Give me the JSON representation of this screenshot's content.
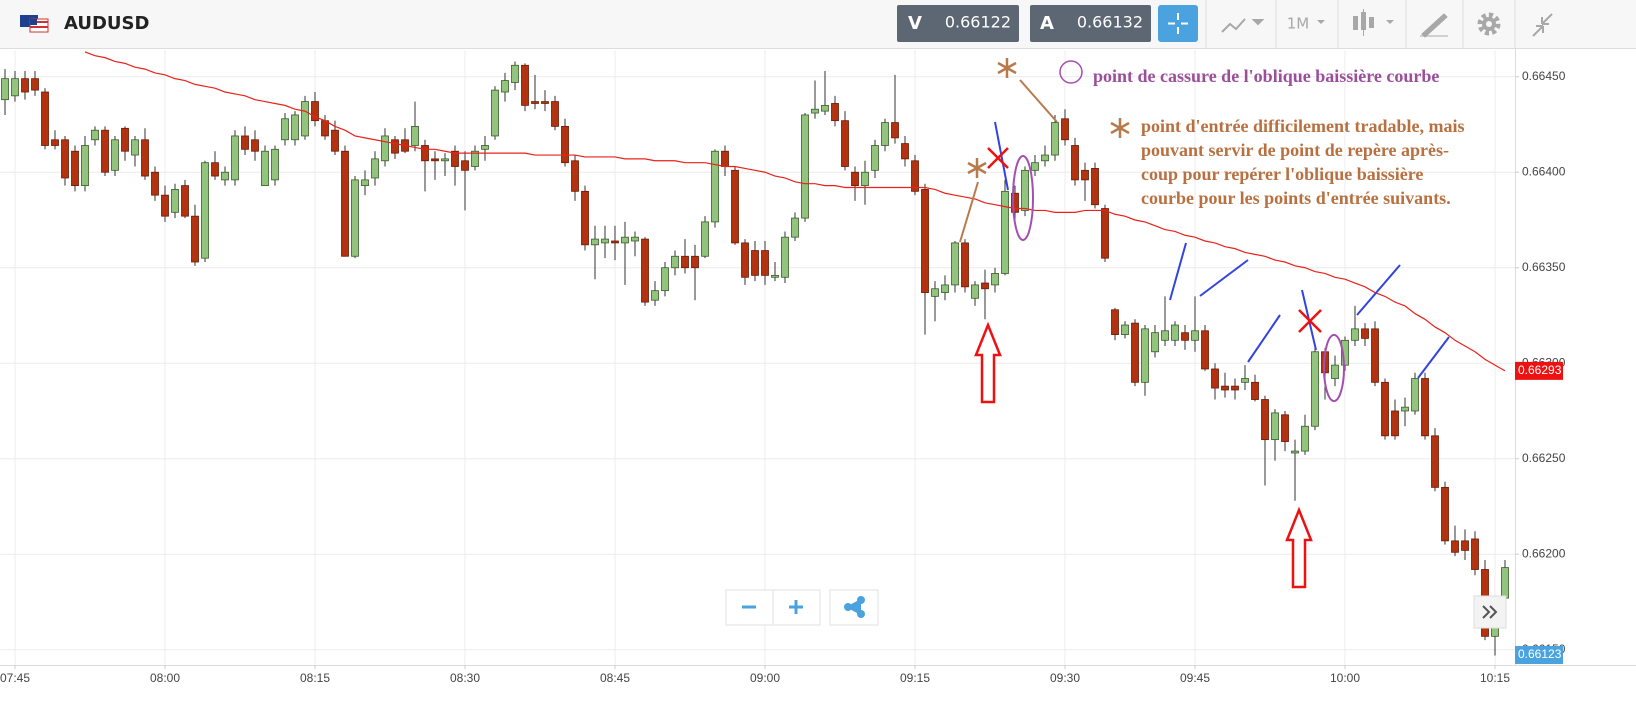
{
  "header": {
    "symbol": "AUDUSD",
    "sell_label": "V",
    "sell_price": "0.66122",
    "buy_label": "A",
    "buy_price": "0.66132",
    "timeframe": "1M"
  },
  "chart_data": {
    "type": "candlestick",
    "categories": [
      null,
      "07:45",
      null,
      null,
      null,
      null,
      null,
      null,
      null,
      null,
      null,
      null,
      null,
      null,
      null,
      null,
      "08:00",
      null,
      null,
      null,
      null,
      null,
      null,
      null,
      null,
      null,
      null,
      null,
      null,
      null,
      null,
      "08:15",
      null,
      null,
      null,
      null,
      null,
      null,
      null,
      null,
      null,
      null,
      null,
      null,
      null,
      null,
      "08:30",
      null,
      null,
      null,
      null,
      null,
      null,
      null,
      null,
      null,
      null,
      null,
      null,
      null,
      null,
      "08:45",
      null,
      null,
      null,
      null,
      null,
      null,
      null,
      null,
      null,
      null,
      null,
      null,
      null,
      null,
      "09:00",
      null,
      null,
      null,
      null,
      null,
      null,
      null,
      null,
      null,
      null,
      null,
      null,
      null,
      null,
      "09:15",
      null,
      null,
      null,
      null,
      null,
      null,
      null,
      null,
      null,
      null,
      null,
      null,
      null,
      null,
      "09:30",
      null,
      null,
      null,
      null,
      null,
      null,
      null,
      null,
      null,
      null,
      null,
      null,
      "09:45",
      null,
      null,
      null,
      null,
      null,
      null,
      null,
      null,
      null,
      null,
      null,
      null,
      null,
      null,
      "10:00",
      null,
      null,
      null,
      null,
      null,
      null,
      null,
      null,
      null,
      null,
      null,
      null,
      null,
      null,
      "10:15",
      null
    ],
    "values": [
      [
        0.66438,
        0.66454,
        0.6643,
        0.66449
      ],
      [
        0.6644,
        0.66453,
        0.66437,
        0.66449
      ],
      [
        0.66449,
        0.66453,
        0.66438,
        0.66442
      ],
      [
        0.66449,
        0.66453,
        0.6644,
        0.66443
      ],
      [
        0.66442,
        0.66444,
        0.66412,
        0.66414
      ],
      [
        0.66417,
        0.66422,
        0.66412,
        0.66414
      ],
      [
        0.66417,
        0.66419,
        0.66393,
        0.66397
      ],
      [
        0.66411,
        0.66414,
        0.6639,
        0.66393
      ],
      [
        0.66393,
        0.66419,
        0.6639,
        0.66414
      ],
      [
        0.66417,
        0.66424,
        0.66414,
        0.66422
      ],
      [
        0.66422,
        0.66424,
        0.66398,
        0.664
      ],
      [
        0.66401,
        0.66419,
        0.66398,
        0.66417
      ],
      [
        0.66423,
        0.66424,
        0.66406,
        0.66411
      ],
      [
        0.66409,
        0.66419,
        0.66403,
        0.66417
      ],
      [
        0.66417,
        0.66423,
        0.66396,
        0.66398
      ],
      [
        0.664,
        0.66403,
        0.66385,
        0.66388
      ],
      [
        0.66388,
        0.66393,
        0.66374,
        0.66377
      ],
      [
        0.66379,
        0.66394,
        0.66376,
        0.66391
      ],
      [
        0.66393,
        0.66396,
        0.66376,
        0.66377
      ],
      [
        0.66377,
        0.66383,
        0.66351,
        0.66353
      ],
      [
        0.66355,
        0.66406,
        0.66353,
        0.66405
      ],
      [
        0.66405,
        0.66411,
        0.66396,
        0.66398
      ],
      [
        0.66396,
        0.66403,
        0.66393,
        0.664
      ],
      [
        0.66396,
        0.66422,
        0.66393,
        0.66419
      ],
      [
        0.66419,
        0.66424,
        0.66409,
        0.66412
      ],
      [
        0.66417,
        0.66422,
        0.66406,
        0.66411
      ],
      [
        0.66393,
        0.66414,
        0.66393,
        0.66411
      ],
      [
        0.66396,
        0.66414,
        0.66393,
        0.66412
      ],
      [
        0.66417,
        0.66431,
        0.66414,
        0.66428
      ],
      [
        0.66417,
        0.66432,
        0.66414,
        0.6643
      ],
      [
        0.66419,
        0.6644,
        0.66417,
        0.66437
      ],
      [
        0.66437,
        0.66442,
        0.66424,
        0.66427
      ],
      [
        0.66427,
        0.6643,
        0.66417,
        0.66419
      ],
      [
        0.66422,
        0.66427,
        0.66409,
        0.66411
      ],
      [
        0.66411,
        0.66414,
        0.66356,
        0.66356
      ],
      [
        0.66356,
        0.66398,
        0.66355,
        0.66396
      ],
      [
        0.66393,
        0.66401,
        0.66388,
        0.66396
      ],
      [
        0.66397,
        0.66411,
        0.66393,
        0.66407
      ],
      [
        0.66406,
        0.66423,
        0.66403,
        0.66419
      ],
      [
        0.66417,
        0.66419,
        0.66407,
        0.6641
      ],
      [
        0.66417,
        0.66423,
        0.6641,
        0.66411
      ],
      [
        0.66414,
        0.66437,
        0.66411,
        0.66424
      ],
      [
        0.66414,
        0.66417,
        0.6639,
        0.66406
      ],
      [
        0.66407,
        0.66411,
        0.66396,
        0.66406
      ],
      [
        0.66406,
        0.6641,
        0.66398,
        0.66407
      ],
      [
        0.66411,
        0.66414,
        0.66393,
        0.66403
      ],
      [
        0.66406,
        0.66411,
        0.6638,
        0.66401
      ],
      [
        0.66403,
        0.66414,
        0.66401,
        0.66411
      ],
      [
        0.66412,
        0.66419,
        0.66406,
        0.66414
      ],
      [
        0.66419,
        0.66445,
        0.66417,
        0.66443
      ],
      [
        0.66442,
        0.66452,
        0.66437,
        0.66448
      ],
      [
        0.66447,
        0.66458,
        0.66443,
        0.66456
      ],
      [
        0.66456,
        0.66457,
        0.66432,
        0.66435
      ],
      [
        0.66437,
        0.66451,
        0.66433,
        0.66436
      ],
      [
        0.66437,
        0.66443,
        0.66432,
        0.66436
      ],
      [
        0.66437,
        0.6644,
        0.66422,
        0.66424
      ],
      [
        0.66424,
        0.66428,
        0.66403,
        0.66405
      ],
      [
        0.66406,
        0.66409,
        0.66385,
        0.6639
      ],
      [
        0.6639,
        0.66393,
        0.66359,
        0.66362
      ],
      [
        0.66362,
        0.66372,
        0.66344,
        0.66365
      ],
      [
        0.66363,
        0.66372,
        0.66355,
        0.66365
      ],
      [
        0.66364,
        0.66372,
        0.66354,
        0.66363
      ],
      [
        0.66363,
        0.66374,
        0.66341,
        0.66366
      ],
      [
        0.66364,
        0.66369,
        0.66356,
        0.66366
      ],
      [
        0.66365,
        0.66366,
        0.6633,
        0.66332
      ],
      [
        0.66333,
        0.66343,
        0.6633,
        0.66338
      ],
      [
        0.66338,
        0.66353,
        0.66335,
        0.6635
      ],
      [
        0.6635,
        0.66359,
        0.66346,
        0.66356
      ],
      [
        0.66356,
        0.66365,
        0.66347,
        0.6635
      ],
      [
        0.66356,
        0.66362,
        0.66333,
        0.6635
      ],
      [
        0.66356,
        0.66377,
        0.66355,
        0.66374
      ],
      [
        0.66374,
        0.66412,
        0.66371,
        0.66411
      ],
      [
        0.66411,
        0.66414,
        0.66398,
        0.66403
      ],
      [
        0.66401,
        0.66403,
        0.66362,
        0.66363
      ],
      [
        0.66363,
        0.66365,
        0.66341,
        0.66345
      ],
      [
        0.66359,
        0.66364,
        0.66343,
        0.66346
      ],
      [
        0.66359,
        0.66364,
        0.66341,
        0.66346
      ],
      [
        0.66345,
        0.66353,
        0.66343,
        0.66346
      ],
      [
        0.66345,
        0.66369,
        0.66342,
        0.66366
      ],
      [
        0.66366,
        0.66379,
        0.66364,
        0.66376
      ],
      [
        0.66376,
        0.66431,
        0.66374,
        0.6643
      ],
      [
        0.66431,
        0.66448,
        0.66428,
        0.66433
      ],
      [
        0.66432,
        0.66453,
        0.6643,
        0.66435
      ],
      [
        0.66436,
        0.6644,
        0.66424,
        0.66427
      ],
      [
        0.66427,
        0.66432,
        0.66401,
        0.66403
      ],
      [
        0.664,
        0.66403,
        0.66385,
        0.66393
      ],
      [
        0.66393,
        0.66406,
        0.66383,
        0.664
      ],
      [
        0.66401,
        0.66417,
        0.66397,
        0.66414
      ],
      [
        0.66414,
        0.66428,
        0.66411,
        0.66426
      ],
      [
        0.66426,
        0.66451,
        0.66415,
        0.66418
      ],
      [
        0.66415,
        0.66419,
        0.66403,
        0.66407
      ],
      [
        0.66406,
        0.66409,
        0.66388,
        0.6639
      ],
      [
        0.66391,
        0.66394,
        0.66315,
        0.66337
      ],
      [
        0.66335,
        0.66343,
        0.66322,
        0.66339
      ],
      [
        0.66337,
        0.66346,
        0.66333,
        0.66341
      ],
      [
        0.66341,
        0.66364,
        0.66337,
        0.66363
      ],
      [
        0.66363,
        0.66365,
        0.66337,
        0.6634
      ],
      [
        0.66334,
        0.66343,
        0.6633,
        0.66341
      ],
      [
        0.66342,
        0.66349,
        0.66323,
        0.66339
      ],
      [
        0.66341,
        0.6635,
        0.66337,
        0.66347
      ],
      [
        0.66347,
        0.66396,
        0.66346,
        0.6639
      ],
      [
        0.66389,
        0.66393,
        0.66375,
        0.66379
      ],
      [
        0.6638,
        0.66403,
        0.66377,
        0.66401
      ],
      [
        0.66401,
        0.66409,
        0.66398,
        0.66405
      ],
      [
        0.66406,
        0.66414,
        0.66403,
        0.66409
      ],
      [
        0.66409,
        0.6643,
        0.66406,
        0.66426
      ],
      [
        0.66428,
        0.66433,
        0.66414,
        0.66417
      ],
      [
        0.66414,
        0.66418,
        0.66393,
        0.66396
      ],
      [
        0.66401,
        0.66405,
        0.66385,
        0.66396
      ],
      [
        0.66402,
        0.66405,
        0.66381,
        0.66383
      ],
      [
        0.66381,
        0.66383,
        0.66353,
        0.66355
      ],
      [
        0.66328,
        0.66329,
        0.66312,
        0.66315
      ],
      [
        0.66315,
        0.66322,
        0.66313,
        0.6632
      ],
      [
        0.66321,
        0.66323,
        0.66288,
        0.6629
      ],
      [
        0.6629,
        0.6632,
        0.66283,
        0.66318
      ],
      [
        0.66306,
        0.6632,
        0.66303,
        0.66316
      ],
      [
        0.66312,
        0.66335,
        0.66309,
        0.66317
      ],
      [
        0.66312,
        0.66322,
        0.66309,
        0.6632
      ],
      [
        0.66316,
        0.6632,
        0.66307,
        0.66312
      ],
      [
        0.66312,
        0.66335,
        0.66306,
        0.66317
      ],
      [
        0.66317,
        0.6632,
        0.66296,
        0.66297
      ],
      [
        0.66297,
        0.663,
        0.66281,
        0.66287
      ],
      [
        0.66288,
        0.66295,
        0.66282,
        0.66286
      ],
      [
        0.66288,
        0.66292,
        0.66281,
        0.66286
      ],
      [
        0.6629,
        0.66299,
        0.66286,
        0.66292
      ],
      [
        0.6629,
        0.66294,
        0.6628,
        0.66281
      ],
      [
        0.66281,
        0.66283,
        0.66236,
        0.6626
      ],
      [
        0.6626,
        0.66276,
        0.66249,
        0.66274
      ],
      [
        0.66273,
        0.66275,
        0.66254,
        0.66259
      ],
      [
        0.66253,
        0.6626,
        0.66228,
        0.66254
      ],
      [
        0.66254,
        0.66273,
        0.66252,
        0.66267
      ],
      [
        0.66267,
        0.66309,
        0.66265,
        0.66306
      ],
      [
        0.66306,
        0.66308,
        0.66281,
        0.66295
      ],
      [
        0.66292,
        0.66304,
        0.66288,
        0.66299
      ],
      [
        0.66299,
        0.66314,
        0.66296,
        0.66312
      ],
      [
        0.66312,
        0.6633,
        0.66309,
        0.66318
      ],
      [
        0.66318,
        0.66321,
        0.66309,
        0.66313
      ],
      [
        0.66318,
        0.66322,
        0.66288,
        0.6629
      ],
      [
        0.6629,
        0.66292,
        0.6626,
        0.66262
      ],
      [
        0.66275,
        0.66281,
        0.6626,
        0.66262
      ],
      [
        0.66275,
        0.66282,
        0.66267,
        0.66277
      ],
      [
        0.66275,
        0.66295,
        0.66273,
        0.66292
      ],
      [
        0.66292,
        0.66295,
        0.6626,
        0.66262
      ],
      [
        0.66262,
        0.66266,
        0.66233,
        0.66235
      ],
      [
        0.66235,
        0.66238,
        0.66205,
        0.66207
      ],
      [
        0.66207,
        0.66215,
        0.66199,
        0.66201
      ],
      [
        0.66207,
        0.66213,
        0.66197,
        0.66202
      ],
      [
        0.66208,
        0.66212,
        0.66189,
        0.66192
      ],
      [
        0.66192,
        0.66197,
        0.66155,
        0.66157
      ],
      [
        0.66157,
        0.66176,
        0.66147,
        0.66163
      ],
      [
        0.66177,
        0.66197,
        0.66176,
        0.66193
      ]
    ],
    "up_color": "#93c47d",
    "down_color": "#b3320f",
    "ma_values": [
      null,
      null,
      null,
      null,
      null,
      null,
      null,
      null,
      0.66463,
      0.66461,
      0.6646,
      0.66458,
      0.66457,
      0.66455,
      0.66454,
      0.66452,
      0.66451,
      0.66449,
      0.66448,
      0.66446,
      0.66445,
      0.66444,
      0.66442,
      0.66441,
      0.6644,
      0.66438,
      0.66437,
      0.66436,
      0.66435,
      0.66433,
      0.66432,
      0.66429,
      0.66427,
      0.66424,
      0.66422,
      0.66419,
      0.66418,
      0.66417,
      0.66416,
      0.66415,
      0.66414,
      0.66413,
      0.66412,
      0.66412,
      0.66411,
      0.6641,
      0.6641,
      0.6641,
      0.6641,
      0.6641,
      0.6641,
      0.6641,
      0.6641,
      0.66409,
      0.66409,
      0.66409,
      0.66409,
      0.66409,
      0.66408,
      0.66408,
      0.66408,
      0.66408,
      0.66407,
      0.66407,
      0.66407,
      0.66406,
      0.66406,
      0.66406,
      0.66405,
      0.66405,
      0.66405,
      0.66404,
      0.66403,
      0.66403,
      0.66402,
      0.66401,
      0.664,
      0.66398,
      0.66397,
      0.66395,
      0.66394,
      0.66394,
      0.66393,
      0.66393,
      0.66392,
      0.66392,
      0.66392,
      0.66392,
      0.66392,
      0.66392,
      0.66392,
      0.66392,
      0.66392,
      0.66391,
      0.66389,
      0.66388,
      0.66387,
      0.66386,
      0.66384,
      0.66383,
      0.66382,
      0.66381,
      0.66381,
      0.6638,
      0.6638,
      0.66379,
      0.66379,
      0.66379,
      0.6638,
      0.6638,
      0.6638,
      0.66378,
      0.66377,
      0.66375,
      0.66374,
      0.66372,
      0.6637,
      0.66369,
      0.66367,
      0.66366,
      0.66364,
      0.66363,
      0.66361,
      0.6636,
      0.66358,
      0.66357,
      0.66356,
      0.66354,
      0.66353,
      0.66351,
      0.6635,
      0.66348,
      0.66347,
      0.66345,
      0.66344,
      0.66342,
      0.6634,
      0.66337,
      0.66335,
      0.66332,
      0.6633,
      0.66326,
      0.66323,
      0.66319,
      0.66316,
      0.66312,
      0.66309,
      0.66306,
      0.66302,
      0.66299,
      0.66296
    ],
    "ma_color": "#e8221b",
    "ylim": [
      0.66142,
      0.66464
    ],
    "yticks": [
      {
        "value": 0.6615,
        "label": "0.66150"
      },
      {
        "value": 0.662,
        "label": "0.66200"
      },
      {
        "value": 0.6625,
        "label": "0.66250"
      },
      {
        "value": 0.663,
        "label": "0.66300"
      },
      {
        "value": 0.6635,
        "label": "0.66350"
      },
      {
        "value": 0.664,
        "label": "0.66400"
      },
      {
        "value": 0.6645,
        "label": "0.66450"
      }
    ],
    "grid": true,
    "price_tags": [
      {
        "label": "0.66293",
        "color": "#ee1111"
      },
      {
        "label": "0.66123",
        "color": "#4aa3df"
      }
    ],
    "annotations": {
      "circle_note": "point de cassure de l'oblique baissière courbe",
      "star_note": [
        "point d'entrée difficilement tradable, mais",
        "pouvant servir de point de repère après-",
        "coup pour repérer l'oblique baissière",
        "courbe pour les points d'entrée suivants."
      ]
    }
  }
}
